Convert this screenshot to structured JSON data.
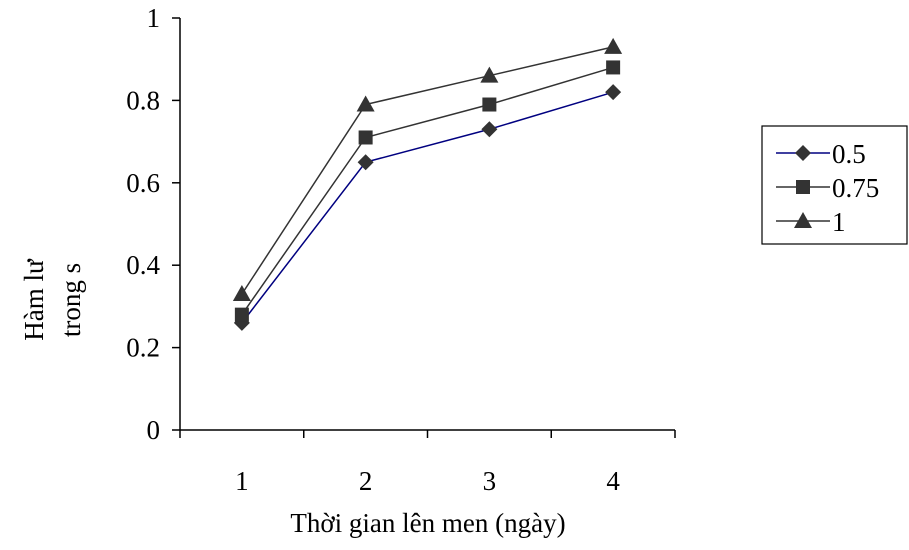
{
  "chart_data": {
    "type": "line",
    "title": "",
    "xlabel": "Thời gian lên men (ngày)",
    "ylabel": [
      "Hàm lư",
      "trong s"
    ],
    "categories": [
      "1",
      "2",
      "3",
      "4"
    ],
    "ylim": [
      0,
      1
    ],
    "yticks": [
      0,
      0.2,
      0.4,
      0.6,
      0.8,
      1
    ],
    "ytick_labels": [
      "0",
      "0.2",
      "0.4",
      "0.6",
      "0.8",
      "1"
    ],
    "grid": false,
    "legend_position": "right",
    "series": [
      {
        "name": "0.5",
        "values": [
          0.26,
          0.65,
          0.73,
          0.82
        ],
        "marker": "diamond",
        "color": "#000080"
      },
      {
        "name": "0.75",
        "values": [
          0.28,
          0.71,
          0.79,
          0.88
        ],
        "marker": "square",
        "color": "#333333"
      },
      {
        "name": "1",
        "values": [
          0.33,
          0.79,
          0.86,
          0.93
        ],
        "marker": "triangle",
        "color": "#333333"
      }
    ],
    "marker_color": "#333333",
    "axis_color": "#000000"
  }
}
